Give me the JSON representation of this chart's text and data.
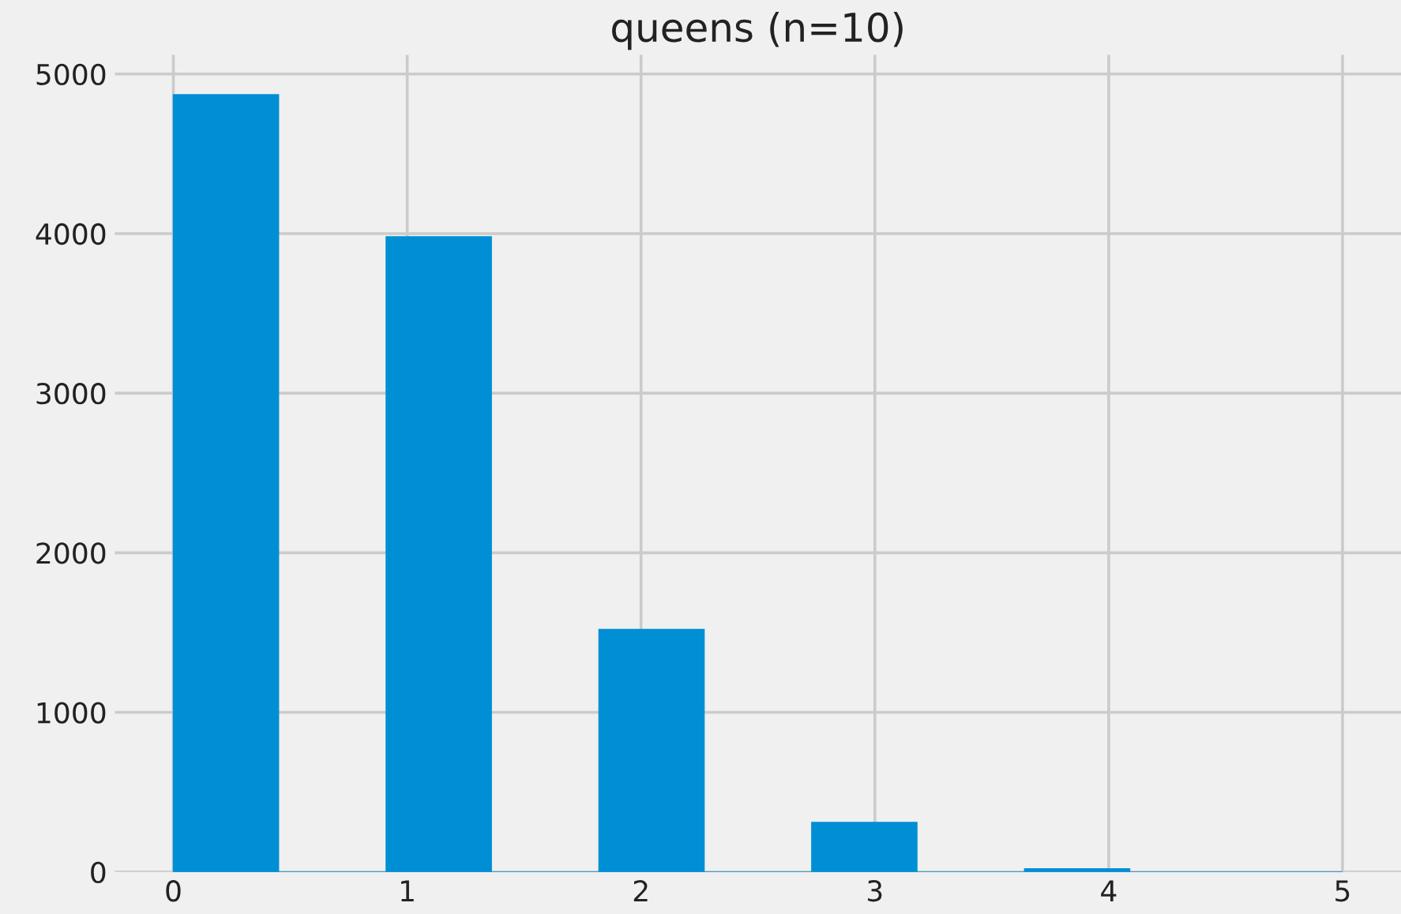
{
  "chart_data": {
    "type": "histogram",
    "title": "queens (n=10)",
    "bins": [
      0,
      0.45,
      0.91,
      1.36,
      1.82,
      2.27,
      2.73,
      3.18,
      3.64,
      4.09,
      4.55,
      5
    ],
    "values": [
      4870,
      0,
      3980,
      0,
      1520,
      0,
      310,
      0,
      20,
      0,
      0
    ],
    "color": "#008fd5",
    "xlim": [
      -0.25,
      5.25
    ],
    "xticks": [
      0,
      1,
      2,
      3,
      4,
      5
    ],
    "ylim": [
      0,
      5120
    ],
    "yticks": [
      0,
      1000,
      2000,
      3000,
      4000,
      5000
    ],
    "grid": true
  }
}
